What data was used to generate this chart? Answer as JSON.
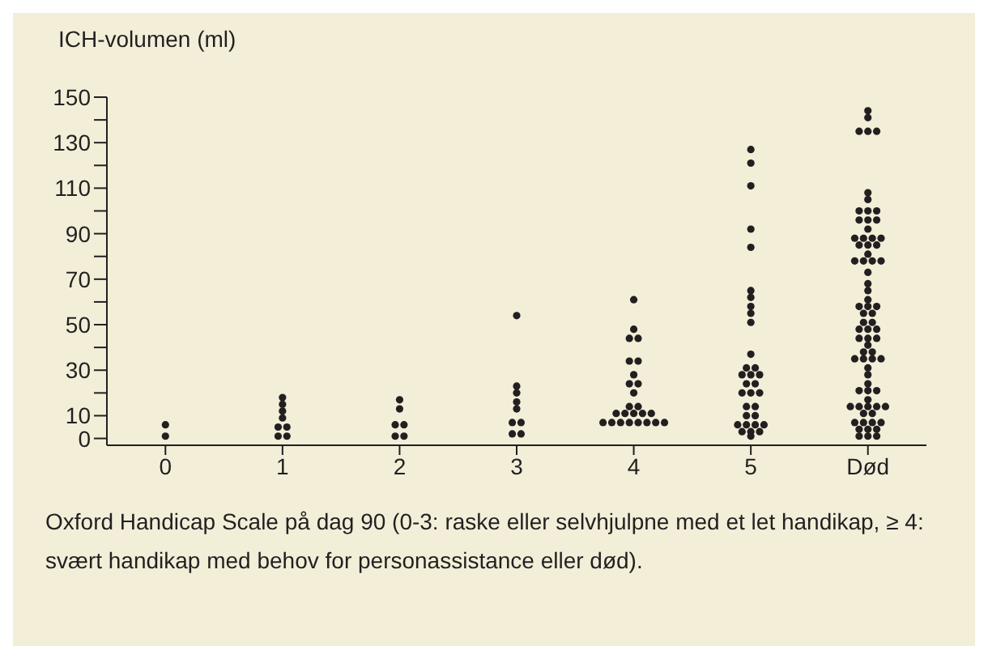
{
  "chart_data": {
    "type": "scatter",
    "ylabel": "ICH-volumen (ml)",
    "xlabel": "Oxford Handicap Scale på dag 90 (0-3: raske eller selvhjulpne med et let handikap, ≥ 4: svært handikap med behov for personassistance eller død).",
    "categories": [
      "0",
      "1",
      "2",
      "3",
      "4",
      "5",
      "Død"
    ],
    "marker": "circle",
    "ylim": [
      -3,
      150
    ],
    "yticks": [
      0,
      10,
      {
        "value": 20,
        "label": null
      },
      30,
      {
        "value": 40,
        "label": null
      },
      50,
      {
        "value": 60,
        "label": null
      },
      70,
      {
        "value": 80,
        "label": null
      },
      90,
      {
        "value": 100,
        "label": null
      },
      110,
      {
        "value": 120,
        "label": null
      },
      130,
      {
        "value": 140,
        "label": null
      },
      150
    ],
    "series": [
      {
        "color": "#231f20",
        "x": [
          "0",
          "0",
          "1",
          "1",
          "1",
          "1",
          "1",
          "1",
          "1",
          "1",
          "2",
          "2",
          "2",
          "2",
          "2",
          "2",
          "3",
          "3",
          "3",
          "3",
          "3",
          "3",
          "3",
          "3",
          "3",
          "4",
          "4",
          "4",
          "4",
          "4",
          "4",
          "4",
          "4",
          "4",
          "4",
          "4",
          "4",
          "4",
          "4",
          "4",
          "4",
          "4",
          "4",
          "4",
          "4",
          "4",
          "4",
          "4",
          "4",
          "4",
          "5",
          "5",
          "5",
          "5",
          "5",
          "5",
          "5",
          "5",
          "5",
          "5",
          "5",
          "5",
          "5",
          "5",
          "5",
          "5",
          "5",
          "5",
          "5",
          "5",
          "5",
          "5",
          "5",
          "5",
          "5",
          "5",
          "5",
          "5",
          "5",
          "5",
          "5",
          "5",
          "5",
          "Død",
          "Død",
          "Død",
          "Død",
          "Død",
          "Død",
          "Død",
          "Død",
          "Død",
          "Død",
          "Død",
          "Død",
          "Død",
          "Død",
          "Død",
          "Død",
          "Død",
          "Død",
          "Død",
          "Død",
          "Død",
          "Død",
          "Død",
          "Død",
          "Død",
          "Død",
          "Død",
          "Død",
          "Død",
          "Død",
          "Død",
          "Død",
          "Død",
          "Død",
          "Død",
          "Død",
          "Død",
          "Død",
          "Død",
          "Død",
          "Død",
          "Død",
          "Død",
          "Død",
          "Død",
          "Død",
          "Død",
          "Død",
          "Død",
          "Død",
          "Død",
          "Død",
          "Død",
          "Død",
          "Død",
          "Død",
          "Død",
          "Død",
          "Død",
          "Død",
          "Død",
          "Død",
          "Død",
          "Død",
          "Død",
          "Død",
          "Død",
          "Død",
          "Død",
          "Død",
          "Død",
          "Død",
          "Død",
          "Død"
        ],
        "values": [
          6,
          1,
          18,
          15,
          12,
          9,
          5,
          5,
          1,
          1,
          17,
          13,
          6,
          6,
          1,
          1,
          54,
          23,
          20,
          16,
          13,
          7,
          7,
          2,
          2,
          61,
          48,
          44,
          44,
          34,
          34,
          28,
          24,
          24,
          20,
          14,
          14,
          11,
          11,
          11,
          11,
          11,
          7,
          7,
          7,
          7,
          7,
          7,
          7,
          7,
          127,
          121,
          111,
          92,
          84,
          65,
          62,
          58,
          55,
          51,
          37,
          31,
          31,
          28,
          28,
          28,
          24,
          24,
          20,
          20,
          20,
          14,
          14,
          10,
          10,
          6,
          6,
          6,
          6,
          3,
          3,
          3,
          1,
          144,
          141,
          135,
          135,
          135,
          108,
          105,
          100,
          100,
          100,
          96,
          96,
          96,
          92,
          88,
          88,
          88,
          88,
          85,
          85,
          85,
          81,
          78,
          78,
          78,
          78,
          73,
          68,
          65,
          61,
          58,
          58,
          58,
          55,
          55,
          51,
          51,
          48,
          48,
          48,
          44,
          44,
          44,
          41,
          38,
          38,
          35,
          35,
          35,
          35,
          31,
          28,
          24,
          21,
          21,
          21,
          17,
          14,
          14,
          14,
          14,
          14,
          11,
          11,
          7,
          7,
          7,
          7,
          4,
          4,
          4,
          1,
          1,
          1
        ]
      }
    ]
  }
}
